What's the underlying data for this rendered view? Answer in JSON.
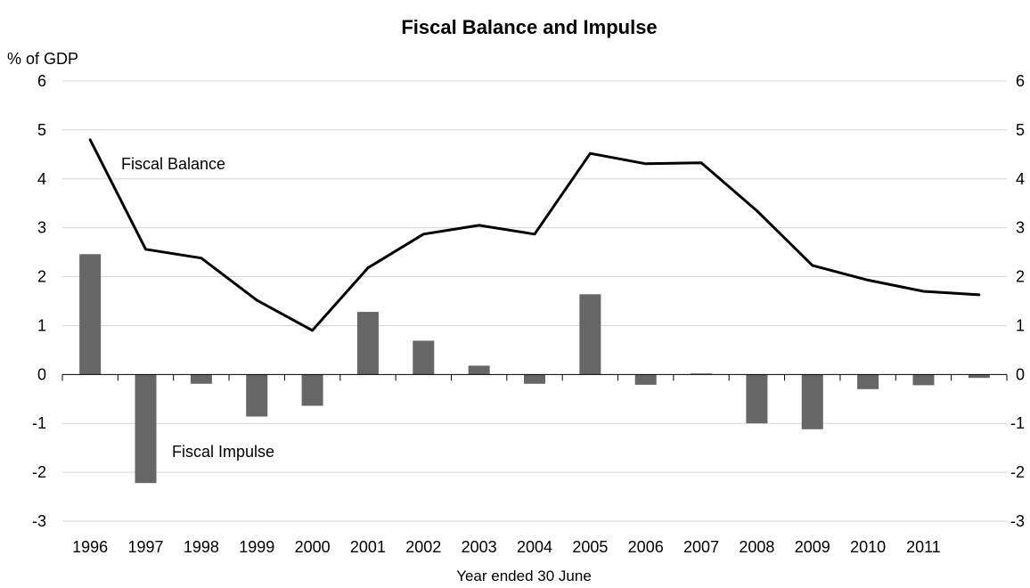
{
  "chart_data": {
    "type": "bar+line",
    "title": "Fiscal Balance and Impulse",
    "ylabel": "% of GDP",
    "xlabel": "Year ended 30 June",
    "ylim": [
      -3,
      6
    ],
    "yticks": [
      "6",
      "5",
      "4",
      "3",
      "2",
      "1",
      "0",
      "-1",
      "-2",
      "-3"
    ],
    "categories": [
      "1996",
      "1997",
      "1998",
      "1999",
      "2000",
      "2001",
      "2002",
      "2003",
      "2004",
      "2005",
      "2006",
      "2007",
      "2008",
      "2009",
      "2010",
      "2011",
      ""
    ],
    "grid": true,
    "series": [
      {
        "name": "Fiscal Balance",
        "type": "line",
        "color": "#000000",
        "values": [
          4.8,
          2.56,
          2.38,
          1.52,
          0.9,
          2.18,
          2.87,
          3.05,
          2.87,
          4.52,
          4.31,
          4.33,
          3.35,
          2.23,
          1.93,
          1.7,
          1.63
        ]
      },
      {
        "name": "Fiscal Impulse",
        "type": "bar",
        "color": "#666666",
        "values": [
          2.46,
          -2.22,
          -0.19,
          -0.86,
          -0.64,
          1.28,
          0.69,
          0.18,
          -0.19,
          1.64,
          -0.21,
          0.02,
          -1.0,
          -1.12,
          -0.3,
          -0.22,
          -0.07
        ]
      }
    ],
    "annotations": {
      "balance_label": "Fiscal Balance",
      "impulse_label": "Fiscal Impulse"
    }
  }
}
